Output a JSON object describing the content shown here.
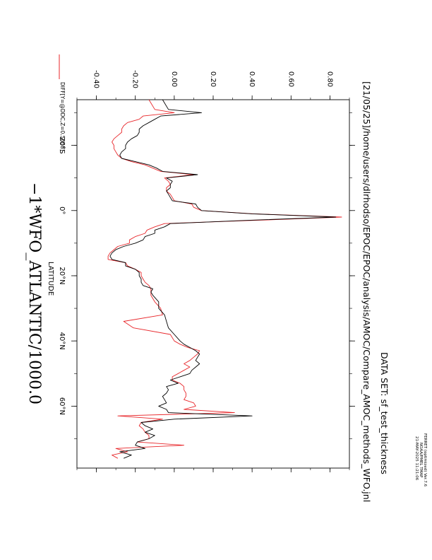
{
  "header": {
    "program": "FERRET (optimized) Ver.7.6",
    "noaa": "NOAA/PMEL TMAP",
    "timestamp": "21-MAY-2025 11:21:06",
    "dataset": "DATA SET: sf_test_thickness",
    "journal_path": "[21/05/25]/home/users/dlrhodso/EPOC/EPOC/analysis/AMOC/Compare_AMOC_methods_WFO.jnl"
  },
  "main_title": "−1*WFO_ATLANTIC/1000.0",
  "legend": {
    "label": "DIFF[Y=@DDC,Z=0.5058]",
    "color": "#e8262a"
  },
  "colors": {
    "series1": "#000000",
    "series2": "#e8262a"
  },
  "chart_data": {
    "type": "line",
    "orientation": "rotated 90 degrees clockwise",
    "xlabel": "LATITUDE",
    "ylabel": "",
    "xlim": [
      -34,
      79
    ],
    "ylim": [
      -0.5,
      0.9
    ],
    "x_ticks": [
      "20°S",
      "0°",
      "20°N",
      "40°N",
      "60°N"
    ],
    "x_tick_values": [
      -20,
      0,
      20,
      40,
      60
    ],
    "y_ticks": [
      "-0.40",
      "-0.20",
      "0.00",
      "0.20",
      "0.40",
      "0.60",
      "0.80"
    ],
    "y_tick_values": [
      -0.4,
      -0.2,
      0.0,
      0.2,
      0.4,
      0.6,
      0.8
    ],
    "series": [
      {
        "x": [
          -34,
          -31,
          -30,
          -29,
          -28,
          -27,
          -26,
          -25,
          -24,
          -23,
          -22,
          -21,
          -20,
          -19,
          -18,
          -17,
          -16,
          -15,
          -14,
          -13,
          -12,
          -11,
          -10,
          -9,
          -8,
          -7,
          -6,
          -5,
          -4,
          -3,
          -2,
          -1,
          0,
          1,
          2,
          3,
          4,
          5,
          6,
          7,
          8,
          9,
          10,
          11,
          12,
          13,
          14,
          15,
          16,
          17,
          18,
          19,
          20,
          21,
          22,
          23,
          24,
          25,
          26,
          28,
          30,
          32,
          34,
          36,
          38,
          40,
          41,
          42,
          43,
          44,
          45,
          46,
          47,
          48,
          49,
          50,
          51,
          52,
          53,
          54,
          55,
          56,
          57,
          58,
          59,
          60,
          61,
          62,
          63,
          64,
          65,
          66,
          67,
          68,
          69,
          70,
          71,
          72,
          73,
          74,
          75,
          76
        ],
        "values": [
          -0.06,
          -0.03,
          0.14,
          -0.07,
          -0.1,
          -0.13,
          -0.16,
          -0.18,
          -0.18,
          -0.19,
          -0.22,
          -0.24,
          -0.25,
          -0.25,
          -0.27,
          -0.28,
          -0.27,
          -0.2,
          -0.13,
          -0.09,
          -0.06,
          0.12,
          -0.04,
          -0.01,
          -0.02,
          -0.02,
          -0.04,
          -0.03,
          -0.02,
          -0.01,
          0.11,
          0.12,
          0.14,
          0.4,
          0.83,
          0.38,
          -0.02,
          -0.05,
          -0.1,
          -0.1,
          -0.15,
          -0.16,
          -0.2,
          -0.26,
          -0.3,
          -0.32,
          -0.33,
          -0.32,
          -0.25,
          -0.25,
          -0.2,
          -0.18,
          -0.18,
          -0.17,
          -0.17,
          -0.16,
          -0.11,
          -0.12,
          -0.11,
          -0.08,
          -0.08,
          -0.05,
          -0.04,
          -0.03,
          0.0,
          0.03,
          0.05,
          0.08,
          0.11,
          0.13,
          0.12,
          0.11,
          0.13,
          0.11,
          0.09,
          0.08,
          0.03,
          -0.02,
          0.02,
          -0.04,
          -0.03,
          -0.04,
          -0.06,
          -0.05,
          -0.04,
          -0.08,
          -0.04,
          -0.03,
          0.4,
          0.0,
          -0.17,
          -0.15,
          -0.11,
          -0.15,
          -0.1,
          -0.13,
          -0.19,
          -0.2,
          -0.15,
          -0.28,
          -0.22,
          -0.26
        ]
      },
      {
        "name": "DIFF[Y=@DDC,Z=0.5058]",
        "x": [
          -34,
          -31,
          -30,
          -29,
          -28,
          -27,
          -26,
          -25,
          -24,
          -23,
          -22,
          -21,
          -20,
          -19,
          -18,
          -17,
          -16,
          -15,
          -14,
          -13,
          -12,
          -11,
          -10,
          -9,
          -8,
          -7,
          -6,
          -5,
          -4,
          -3,
          -2,
          -1,
          0,
          1,
          2,
          3,
          4,
          5,
          6,
          7,
          8,
          9,
          10,
          11,
          12,
          13,
          14,
          15,
          16,
          17,
          18,
          19,
          20,
          21,
          22,
          23,
          24,
          25,
          26,
          28,
          30,
          32,
          34,
          36,
          38,
          40,
          41,
          42,
          43,
          44,
          45,
          46,
          47,
          48,
          49,
          50,
          51,
          52,
          53,
          54,
          55,
          56,
          57,
          58,
          59,
          60,
          61,
          62,
          63,
          64,
          65,
          66,
          67,
          68,
          69,
          70,
          71,
          72,
          73,
          74,
          75,
          76
        ],
        "values": [
          -0.13,
          -0.1,
          0.0,
          -0.16,
          -0.18,
          -0.24,
          -0.26,
          -0.27,
          -0.27,
          -0.29,
          -0.31,
          -0.32,
          -0.31,
          -0.31,
          -0.3,
          -0.29,
          -0.27,
          -0.22,
          -0.15,
          -0.11,
          -0.07,
          0.1,
          -0.05,
          -0.03,
          -0.02,
          -0.04,
          -0.04,
          -0.02,
          -0.01,
          0.0,
          0.09,
          0.1,
          0.14,
          0.41,
          0.86,
          0.42,
          -0.05,
          -0.1,
          -0.14,
          -0.15,
          -0.2,
          -0.23,
          -0.23,
          -0.29,
          -0.31,
          -0.33,
          -0.34,
          -0.34,
          -0.25,
          -0.24,
          -0.2,
          -0.17,
          -0.17,
          -0.16,
          -0.15,
          -0.13,
          -0.12,
          -0.12,
          -0.12,
          -0.1,
          -0.07,
          -0.06,
          -0.26,
          -0.21,
          -0.02,
          0.0,
          0.03,
          0.07,
          0.13,
          0.12,
          0.1,
          0.08,
          0.05,
          0.08,
          0.05,
          0.02,
          -0.01,
          -0.01,
          0.03,
          0.05,
          0.05,
          0.06,
          0.06,
          0.05,
          0.1,
          0.11,
          0.05,
          0.31,
          -0.29,
          -0.06,
          -0.17,
          -0.18,
          -0.16,
          -0.15,
          -0.13,
          -0.13,
          -0.19,
          0.05,
          -0.3,
          -0.24,
          -0.32,
          -0.29
        ]
      }
    ],
    "grid": false
  }
}
